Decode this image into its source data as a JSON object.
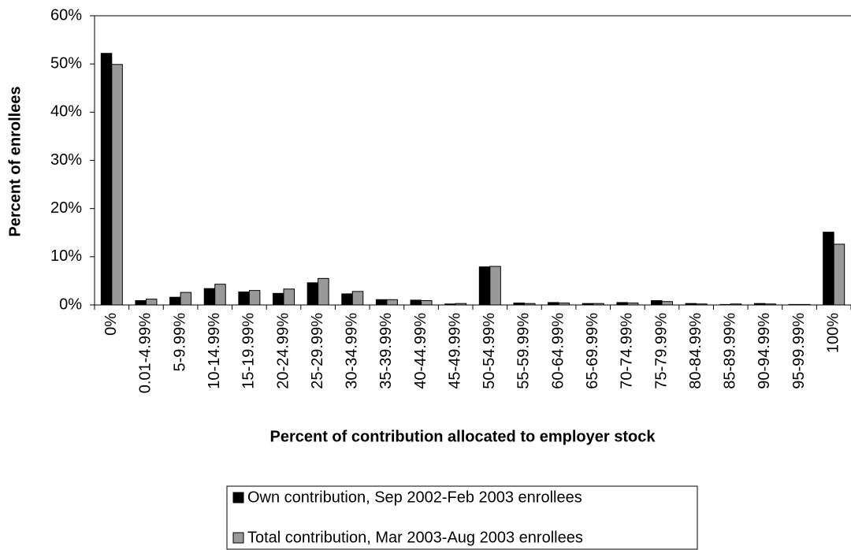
{
  "chart_data": {
    "type": "bar",
    "x_label": "Percent of contribution allocated to employer stock",
    "y_label": "Percent of enrollees",
    "categories": [
      "0%",
      "0.01-4.99%",
      "5-9.99%",
      "10-14.99%",
      "15-19.99%",
      "20-24.99%",
      "25-29.99%",
      "30-34.99%",
      "35-39.99%",
      "40-44.99%",
      "45-49.99%",
      "50-54.99%",
      "55-59.99%",
      "60-64.99%",
      "65-69.99%",
      "70-74.99%",
      "75-79.99%",
      "80-84.99%",
      "85-89.99%",
      "90-94.99%",
      "95-99.99%",
      "100%"
    ],
    "series": [
      {
        "name": "Own contribution, Sep 2002-Feb 2003 enrollees",
        "color": "#000000",
        "values": [
          52.2,
          0.9,
          1.6,
          3.4,
          2.7,
          2.4,
          4.6,
          2.3,
          1.1,
          1.0,
          0.2,
          7.9,
          0.4,
          0.5,
          0.3,
          0.5,
          0.9,
          0.3,
          0.1,
          0.3,
          0.1,
          15.1
        ]
      },
      {
        "name": "Total contribution, Mar 2003-Aug 2003 enrollees",
        "color": "#999999",
        "values": [
          49.9,
          1.2,
          2.6,
          4.3,
          3.0,
          3.3,
          5.5,
          2.8,
          1.1,
          0.9,
          0.3,
          8.0,
          0.3,
          0.4,
          0.3,
          0.4,
          0.7,
          0.2,
          0.2,
          0.2,
          0.1,
          12.6
        ]
      }
    ],
    "ylim": [
      0,
      60
    ],
    "yticks": [
      {
        "value": 0,
        "label": "0%"
      },
      {
        "value": 10,
        "label": "10%"
      },
      {
        "value": 20,
        "label": "20%"
      },
      {
        "value": 30,
        "label": "30%"
      },
      {
        "value": 40,
        "label": "40%"
      },
      {
        "value": 50,
        "label": "50%"
      },
      {
        "value": 60,
        "label": "60%"
      }
    ],
    "grid": false,
    "legend": "bottom"
  }
}
